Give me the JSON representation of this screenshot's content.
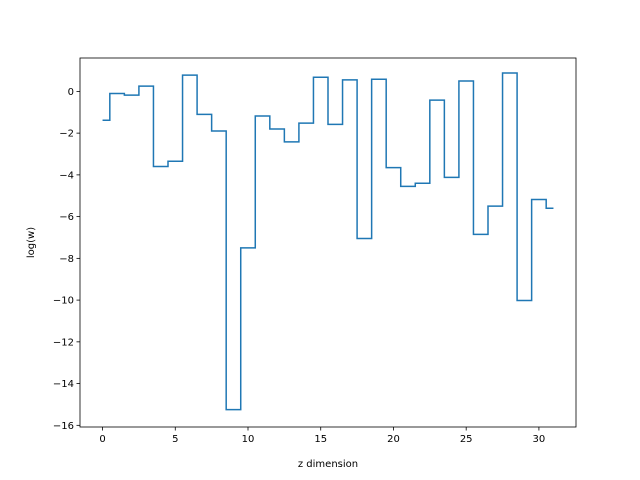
{
  "chart_data": {
    "type": "line",
    "drawstyle": "steps-mid",
    "title": "",
    "xlabel": "z dimension",
    "ylabel": "log(w)",
    "xlim": [
      -1.55,
      32.55
    ],
    "ylim": [
      -16.08,
      1.6
    ],
    "xticks": [
      0,
      5,
      10,
      15,
      20,
      25,
      30
    ],
    "yticks": [
      -16,
      -14,
      -12,
      -10,
      -8,
      -6,
      -4,
      -2,
      0
    ],
    "grid": false,
    "legend": false,
    "line_color": "#1f77b4",
    "series": [
      {
        "x": [
          0,
          1,
          2,
          3,
          4,
          5,
          6,
          7,
          8,
          9,
          10,
          11,
          12,
          13,
          14,
          15,
          16,
          17,
          18,
          19,
          20,
          21,
          22,
          23,
          24,
          25,
          26,
          27,
          28,
          29,
          30,
          31
        ],
        "values": [
          -1.38,
          -0.1,
          -0.18,
          0.25,
          -3.6,
          -3.35,
          0.78,
          -1.1,
          -1.9,
          -15.25,
          -7.5,
          -1.18,
          -1.8,
          -2.42,
          -1.52,
          0.68,
          -1.58,
          0.55,
          -7.05,
          0.58,
          -3.65,
          -4.55,
          -4.4,
          -0.42,
          -4.12,
          0.5,
          -6.85,
          -5.5,
          0.88,
          -10.02,
          -5.18,
          -5.6
        ]
      }
    ]
  }
}
